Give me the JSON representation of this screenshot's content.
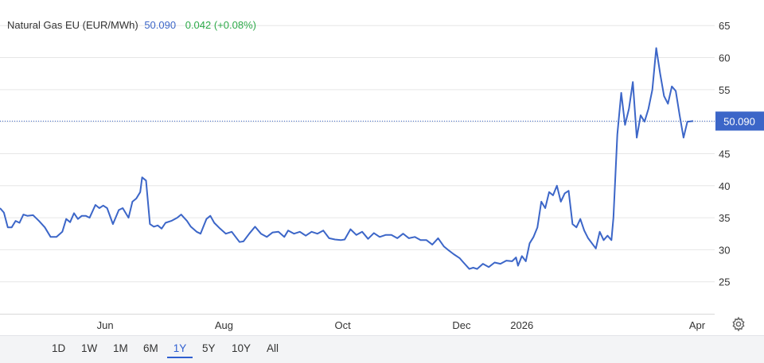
{
  "legend": {
    "name": "Natural Gas EU (EUR/MWh)",
    "price": "50.090",
    "change": "0.042 (+0.08%)"
  },
  "colors": {
    "line": "#3c66c8",
    "positive": "#2eaa4a",
    "grid": "#e6e6e6"
  },
  "ranges": [
    "1D",
    "1W",
    "1M",
    "6M",
    "1Y",
    "5Y",
    "10Y",
    "All"
  ],
  "active_range": "1Y",
  "chart_data": {
    "type": "line",
    "title": "Natural Gas EU (EUR/MWh)",
    "xlabel": "",
    "ylabel": "",
    "y_axis_side": "right",
    "ylim": [
      20,
      69
    ],
    "yticks": [
      25,
      30,
      35,
      40,
      45,
      50,
      55,
      60,
      65
    ],
    "grid": true,
    "x_tick_labels": [
      "Jun",
      "Aug",
      "Oct",
      "Dec",
      "2026",
      "Apr"
    ],
    "x_tick_dates": [
      "2025-06-01",
      "2025-08-01",
      "2025-10-01",
      "2025-12-01",
      "2026-01-01",
      "2026-04-01"
    ],
    "xlim": [
      "2025-04-08",
      "2026-04-10"
    ],
    "current_value": 50.09,
    "current_value_label": "50.090",
    "series": [
      {
        "name": "Natural Gas EU (EUR/MWh)",
        "points": [
          [
            "2025-04-08",
            36.5
          ],
          [
            "2025-04-10",
            35.8
          ],
          [
            "2025-04-12",
            33.5
          ],
          [
            "2025-04-14",
            33.5
          ],
          [
            "2025-04-16",
            34.5
          ],
          [
            "2025-04-18",
            34.2
          ],
          [
            "2025-04-20",
            35.5
          ],
          [
            "2025-04-22",
            35.3
          ],
          [
            "2025-04-25",
            35.4
          ],
          [
            "2025-04-28",
            34.5
          ],
          [
            "2025-05-01",
            33.5
          ],
          [
            "2025-05-04",
            32.0
          ],
          [
            "2025-05-07",
            32.0
          ],
          [
            "2025-05-10",
            32.8
          ],
          [
            "2025-05-12",
            34.8
          ],
          [
            "2025-05-14",
            34.3
          ],
          [
            "2025-05-16",
            35.7
          ],
          [
            "2025-05-18",
            34.8
          ],
          [
            "2025-05-20",
            35.3
          ],
          [
            "2025-05-22",
            35.3
          ],
          [
            "2025-05-24",
            35.0
          ],
          [
            "2025-05-27",
            37.0
          ],
          [
            "2025-05-29",
            36.5
          ],
          [
            "2025-05-31",
            36.9
          ],
          [
            "2025-06-02",
            36.5
          ],
          [
            "2025-06-05",
            34.0
          ],
          [
            "2025-06-08",
            36.2
          ],
          [
            "2025-06-10",
            36.5
          ],
          [
            "2025-06-13",
            35.0
          ],
          [
            "2025-06-15",
            37.5
          ],
          [
            "2025-06-17",
            38.0
          ],
          [
            "2025-06-19",
            39.0
          ],
          [
            "2025-06-20",
            41.3
          ],
          [
            "2025-06-22",
            40.8
          ],
          [
            "2025-06-24",
            34.0
          ],
          [
            "2025-06-26",
            33.6
          ],
          [
            "2025-06-28",
            33.8
          ],
          [
            "2025-06-30",
            33.3
          ],
          [
            "2025-07-02",
            34.2
          ],
          [
            "2025-07-05",
            34.5
          ],
          [
            "2025-07-08",
            35.0
          ],
          [
            "2025-07-10",
            35.5
          ],
          [
            "2025-07-13",
            34.5
          ],
          [
            "2025-07-15",
            33.6
          ],
          [
            "2025-07-18",
            32.8
          ],
          [
            "2025-07-20",
            32.5
          ],
          [
            "2025-07-23",
            34.8
          ],
          [
            "2025-07-25",
            35.3
          ],
          [
            "2025-07-27",
            34.2
          ],
          [
            "2025-07-30",
            33.3
          ],
          [
            "2025-08-02",
            32.5
          ],
          [
            "2025-08-05",
            32.8
          ],
          [
            "2025-08-07",
            32.0
          ],
          [
            "2025-08-09",
            31.2
          ],
          [
            "2025-08-11",
            31.3
          ],
          [
            "2025-08-14",
            32.5
          ],
          [
            "2025-08-17",
            33.6
          ],
          [
            "2025-08-20",
            32.5
          ],
          [
            "2025-08-23",
            32.0
          ],
          [
            "2025-08-26",
            32.7
          ],
          [
            "2025-08-29",
            32.8
          ],
          [
            "2025-09-01",
            32.0
          ],
          [
            "2025-09-03",
            33.0
          ],
          [
            "2025-09-06",
            32.5
          ],
          [
            "2025-09-09",
            32.8
          ],
          [
            "2025-09-12",
            32.2
          ],
          [
            "2025-09-15",
            32.8
          ],
          [
            "2025-09-18",
            32.5
          ],
          [
            "2025-09-21",
            33.0
          ],
          [
            "2025-09-24",
            31.8
          ],
          [
            "2025-09-27",
            31.6
          ],
          [
            "2025-09-30",
            31.5
          ],
          [
            "2025-10-02",
            31.6
          ],
          [
            "2025-10-05",
            33.2
          ],
          [
            "2025-10-08",
            32.3
          ],
          [
            "2025-10-11",
            32.8
          ],
          [
            "2025-10-14",
            31.7
          ],
          [
            "2025-10-17",
            32.6
          ],
          [
            "2025-10-20",
            32.0
          ],
          [
            "2025-10-23",
            32.3
          ],
          [
            "2025-10-26",
            32.3
          ],
          [
            "2025-10-29",
            31.8
          ],
          [
            "2025-11-01",
            32.5
          ],
          [
            "2025-11-04",
            31.8
          ],
          [
            "2025-11-07",
            32.0
          ],
          [
            "2025-11-10",
            31.5
          ],
          [
            "2025-11-13",
            31.5
          ],
          [
            "2025-11-16",
            30.8
          ],
          [
            "2025-11-19",
            31.8
          ],
          [
            "2025-11-22",
            30.5
          ],
          [
            "2025-11-24",
            30.0
          ],
          [
            "2025-11-27",
            29.3
          ],
          [
            "2025-11-30",
            28.7
          ],
          [
            "2025-12-02",
            28.0
          ],
          [
            "2025-12-05",
            27.0
          ],
          [
            "2025-12-07",
            27.2
          ],
          [
            "2025-12-09",
            27.0
          ],
          [
            "2025-12-12",
            27.8
          ],
          [
            "2025-12-15",
            27.3
          ],
          [
            "2025-12-18",
            28.0
          ],
          [
            "2025-12-21",
            27.8
          ],
          [
            "2025-12-24",
            28.3
          ],
          [
            "2025-12-27",
            28.2
          ],
          [
            "2025-12-29",
            28.8
          ],
          [
            "2025-12-30",
            27.5
          ],
          [
            "2026-01-01",
            29.0
          ],
          [
            "2026-01-03",
            28.2
          ],
          [
            "2026-01-05",
            31.0
          ],
          [
            "2026-01-07",
            32.0
          ],
          [
            "2026-01-09",
            33.5
          ],
          [
            "2026-01-11",
            37.5
          ],
          [
            "2026-01-13",
            36.5
          ],
          [
            "2026-01-15",
            39.0
          ],
          [
            "2026-01-17",
            38.5
          ],
          [
            "2026-01-19",
            40.0
          ],
          [
            "2026-01-21",
            37.5
          ],
          [
            "2026-01-23",
            38.8
          ],
          [
            "2026-01-25",
            39.2
          ],
          [
            "2026-01-27",
            34.0
          ],
          [
            "2026-01-29",
            33.5
          ],
          [
            "2026-01-31",
            34.8
          ],
          [
            "2026-02-02",
            33.0
          ],
          [
            "2026-02-04",
            31.8
          ],
          [
            "2026-02-06",
            31.0
          ],
          [
            "2026-02-08",
            30.2
          ],
          [
            "2026-02-10",
            32.8
          ],
          [
            "2026-02-12",
            31.5
          ],
          [
            "2026-02-14",
            32.2
          ],
          [
            "2026-02-16",
            31.5
          ],
          [
            "2026-02-17",
            35.0
          ],
          [
            "2026-02-19",
            48.0
          ],
          [
            "2026-02-21",
            54.5
          ],
          [
            "2026-02-23",
            49.5
          ],
          [
            "2026-02-25",
            52.0
          ],
          [
            "2026-02-27",
            56.2
          ],
          [
            "2026-03-01",
            47.5
          ],
          [
            "2026-03-03",
            51.0
          ],
          [
            "2026-03-05",
            50.0
          ],
          [
            "2026-03-07",
            52.0
          ],
          [
            "2026-03-09",
            55.0
          ],
          [
            "2026-03-11",
            61.5
          ],
          [
            "2026-03-13",
            57.5
          ],
          [
            "2026-03-15",
            54.0
          ],
          [
            "2026-03-17",
            52.8
          ],
          [
            "2026-03-19",
            55.5
          ],
          [
            "2026-03-21",
            54.8
          ],
          [
            "2026-03-23",
            51.0
          ],
          [
            "2026-03-25",
            47.5
          ],
          [
            "2026-03-27",
            50.0
          ],
          [
            "2026-03-30",
            50.09
          ]
        ]
      }
    ]
  }
}
